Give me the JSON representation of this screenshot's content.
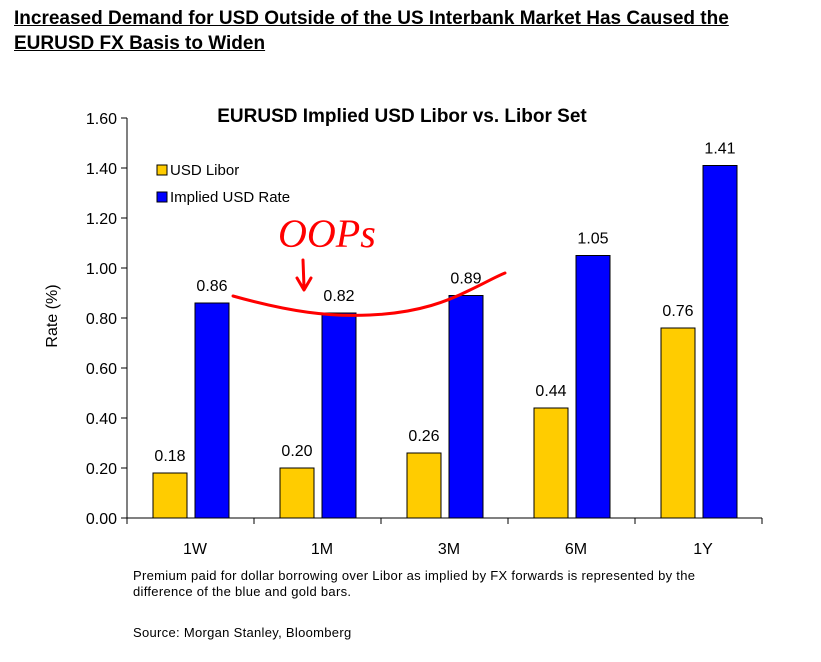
{
  "headline": "Increased Demand for USD Outside of the US Interbank Market Has Caused the EURUSD FX Basis to Widen",
  "caption": "Premium paid for dollar borrowing over Libor as implied by FX forwards is represented by the difference of the blue and gold bars.",
  "source": "Source: Morgan Stanley, Bloomberg",
  "annotation": {
    "text": "OOPs",
    "color": "#ff0000"
  },
  "chart_data": {
    "type": "bar",
    "title": "EURUSD Implied USD Libor vs. Libor Set",
    "xlabel": "",
    "ylabel": "Rate (%)",
    "ylim": [
      0,
      1.6
    ],
    "yticks": [
      0,
      0.2,
      0.4,
      0.6,
      0.8,
      1.0,
      1.2,
      1.4,
      1.6
    ],
    "ytick_labels": [
      "0.00",
      "0.20",
      "0.40",
      "0.60",
      "0.80",
      "1.00",
      "1.20",
      "1.40",
      "1.60"
    ],
    "categories": [
      "1W",
      "1M",
      "3M",
      "6M",
      "1Y"
    ],
    "legend_position": "top-left",
    "series": [
      {
        "name": "USD Libor",
        "color": "#ffcc00",
        "values": [
          0.18,
          0.2,
          0.26,
          0.44,
          0.76
        ],
        "labels": [
          "0.18",
          "0.20",
          "0.26",
          "0.44",
          "0.76"
        ]
      },
      {
        "name": "Implied USD Rate",
        "color": "#0000ff",
        "values": [
          0.86,
          0.82,
          0.89,
          1.05,
          1.41
        ],
        "labels": [
          "0.86",
          "0.82",
          "0.89",
          "1.05",
          "1.41"
        ]
      }
    ]
  }
}
